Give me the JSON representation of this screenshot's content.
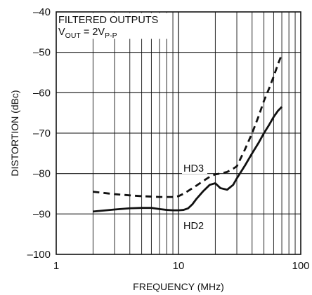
{
  "chart_data": {
    "type": "line",
    "title": "",
    "xlabel": "FREQUENCY (MHz)",
    "ylabel": "DISTORTION (dBc)",
    "x_scale": "log",
    "xlim": [
      1,
      100
    ],
    "ylim": [
      -100,
      -40
    ],
    "grid": true,
    "x_ticks": [
      "1",
      "10",
      "100"
    ],
    "y_ticks": [
      "–40",
      "–50",
      "–60",
      "–70",
      "–80",
      "–90",
      "–100"
    ],
    "annotation": {
      "line1": "FILTERED OUTPUTS",
      "vout_main": "V",
      "vout_sub": "OUT",
      "vout_eq": " = 2V",
      "vout_sub2": "P-P"
    },
    "series": [
      {
        "name": "HD3",
        "style": "dashed",
        "color": "#111111",
        "x": [
          2,
          3,
          4,
          5,
          6,
          7,
          8,
          9,
          10,
          11,
          12,
          14,
          16,
          18,
          20,
          22,
          25,
          28,
          30,
          35,
          40,
          45,
          50,
          55,
          60,
          65,
          70
        ],
        "y": [
          -84.5,
          -85.1,
          -85.4,
          -85.6,
          -85.7,
          -85.8,
          -85.8,
          -85.8,
          -85.6,
          -85.0,
          -84.3,
          -83.0,
          -81.8,
          -80.8,
          -80.2,
          -80.0,
          -79.6,
          -78.8,
          -78.2,
          -74.0,
          -70.0,
          -66.0,
          -62.0,
          -59.0,
          -56.0,
          -53.0,
          -50.5
        ]
      },
      {
        "name": "HD2",
        "style": "solid",
        "color": "#111111",
        "x": [
          2,
          3,
          4,
          5,
          6,
          7,
          8,
          9,
          10,
          11,
          12,
          13,
          14,
          16,
          18,
          20,
          22,
          25,
          28,
          30,
          35,
          40,
          45,
          50,
          55,
          60,
          65,
          70
        ],
        "y": [
          -89.4,
          -88.9,
          -88.6,
          -88.5,
          -88.5,
          -88.8,
          -89.0,
          -89.1,
          -89.1,
          -89.0,
          -88.6,
          -87.6,
          -86.3,
          -84.3,
          -82.8,
          -82.4,
          -83.6,
          -84.0,
          -82.8,
          -81.2,
          -78.0,
          -75.0,
          -72.5,
          -70.0,
          -68.0,
          -66.0,
          -64.5,
          -63.5
        ]
      }
    ],
    "series_labels": [
      "HD3",
      "HD2"
    ]
  }
}
